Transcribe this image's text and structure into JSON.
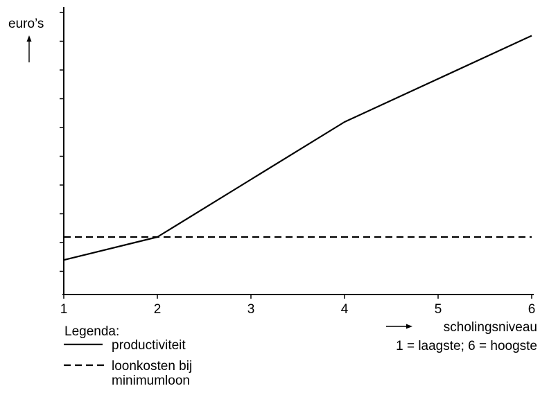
{
  "chart_data": {
    "type": "line",
    "title": "",
    "ylabel": "euro’s",
    "xlabel": "scholingsniveau",
    "xlabel_note": "1 = laagste; 6 = hoogste",
    "x": [
      1,
      2,
      3,
      4,
      5,
      6
    ],
    "xlim": [
      1,
      6
    ],
    "y_ticks_count": 10,
    "y_tick_labels": [],
    "grid": false,
    "series": [
      {
        "name": "productiviteit",
        "style": "solid",
        "color": "#000000",
        "x": [
          1,
          2,
          3,
          4,
          5,
          6
        ],
        "y": [
          1.2,
          2.0,
          4.0,
          6.0,
          7.5,
          9.0
        ]
      },
      {
        "name": "loonkosten bij minimumloon",
        "style": "dashed",
        "color": "#000000",
        "x": [
          1,
          2,
          3,
          4,
          5,
          6
        ],
        "y": [
          2.0,
          2.0,
          2.0,
          2.0,
          2.0,
          2.0
        ]
      }
    ],
    "legend": {
      "title": "Legenda:",
      "placement": "bottom-left",
      "entries": [
        {
          "label_lines": [
            "productiviteit"
          ],
          "style": "solid"
        },
        {
          "label_lines": [
            "loonkosten bij",
            "minimumloon"
          ],
          "style": "dashed"
        }
      ]
    }
  }
}
